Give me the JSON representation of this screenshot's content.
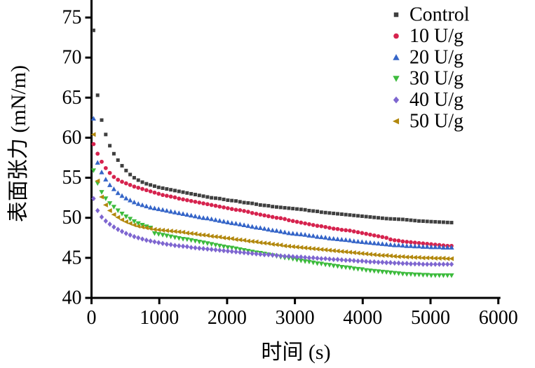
{
  "chart_data": {
    "type": "scatter",
    "title": "",
    "xlabel": "时间 (s)",
    "ylabel": "表面张力 (mN/m)",
    "xlim": [
      0,
      6000
    ],
    "ylim": [
      40,
      75
    ],
    "x_ticks": [
      0,
      1000,
      2000,
      3000,
      4000,
      5000,
      6000
    ],
    "y_ticks": [
      40,
      45,
      50,
      55,
      60,
      65,
      70,
      75
    ],
    "grid": false,
    "legend_position": "top-right",
    "axis_color": "#000000",
    "time_start_s": 30,
    "time_step_s": 60,
    "series": [
      {
        "name": "Control",
        "marker": "square",
        "color": "#3f3f3f",
        "values": [
          73.4,
          65.3,
          62.2,
          60.4,
          59.0,
          58.0,
          57.2,
          56.5,
          55.9,
          55.4,
          55.0,
          54.7,
          54.45,
          54.25,
          54.1,
          53.95,
          53.8,
          53.7,
          53.6,
          53.5,
          53.4,
          53.3,
          53.2,
          53.1,
          53.0,
          52.9,
          52.8,
          52.7,
          52.6,
          52.5,
          52.45,
          52.4,
          52.3,
          52.2,
          52.15,
          52.1,
          52.0,
          51.9,
          51.85,
          51.8,
          51.7,
          51.6,
          51.55,
          51.5,
          51.4,
          51.35,
          51.3,
          51.25,
          51.2,
          51.15,
          51.1,
          51.05,
          51.0,
          50.9,
          50.85,
          50.8,
          50.7,
          50.65,
          50.6,
          50.55,
          50.5,
          50.45,
          50.4,
          50.35,
          50.3,
          50.25,
          50.2,
          50.15,
          50.1,
          50.05,
          50.0,
          49.95,
          49.9,
          49.87,
          49.85,
          49.82,
          49.8,
          49.75,
          49.7,
          49.65,
          49.6,
          49.58,
          49.55,
          49.52,
          49.5,
          49.47,
          49.45,
          49.42,
          49.4
        ]
      },
      {
        "name": "10 U/g",
        "marker": "circle",
        "color": "#d6234e",
        "values": [
          59.2,
          58.0,
          57.0,
          56.2,
          55.6,
          55.1,
          54.75,
          54.5,
          54.3,
          54.1,
          53.9,
          53.75,
          53.6,
          53.45,
          53.3,
          53.15,
          53.0,
          52.85,
          52.75,
          52.65,
          52.55,
          52.4,
          52.3,
          52.2,
          52.1,
          52.0,
          51.9,
          51.8,
          51.7,
          51.6,
          51.5,
          51.4,
          51.3,
          51.2,
          51.1,
          51.0,
          50.95,
          50.85,
          50.75,
          50.6,
          50.5,
          50.4,
          50.3,
          50.2,
          50.1,
          50.0,
          49.95,
          49.85,
          49.7,
          49.6,
          49.5,
          49.4,
          49.3,
          49.2,
          49.1,
          49.0,
          48.95,
          48.85,
          48.75,
          48.65,
          48.6,
          48.5,
          48.45,
          48.4,
          48.3,
          48.2,
          48.1,
          48.0,
          47.9,
          47.8,
          47.7,
          47.6,
          47.5,
          47.3,
          47.2,
          47.15,
          47.05,
          47.0,
          46.95,
          46.9,
          46.85,
          46.8,
          46.75,
          46.7,
          46.65,
          46.6,
          46.55,
          46.5,
          46.5
        ]
      },
      {
        "name": "20 U/g",
        "marker": "triangle-up",
        "color": "#3565c8",
        "values": [
          62.4,
          56.9,
          55.7,
          54.8,
          54.1,
          53.6,
          53.1,
          52.75,
          52.45,
          52.2,
          51.95,
          51.75,
          51.6,
          51.45,
          51.3,
          51.2,
          51.1,
          51.0,
          50.9,
          50.8,
          50.7,
          50.6,
          50.5,
          50.4,
          50.3,
          50.2,
          50.1,
          50.0,
          49.95,
          49.85,
          49.75,
          49.65,
          49.55,
          49.45,
          49.35,
          49.3,
          49.2,
          49.1,
          49.0,
          48.9,
          48.8,
          48.75,
          48.65,
          48.55,
          48.45,
          48.4,
          48.3,
          48.2,
          48.1,
          48.05,
          48.0,
          47.95,
          47.9,
          47.8,
          47.75,
          47.65,
          47.6,
          47.55,
          47.45,
          47.4,
          47.35,
          47.3,
          47.25,
          47.2,
          47.1,
          47.05,
          47.0,
          46.95,
          46.9,
          46.85,
          46.8,
          46.75,
          46.7,
          46.65,
          46.6,
          46.6,
          46.55,
          46.5,
          46.5,
          46.45,
          46.45,
          46.4,
          46.4,
          46.35,
          46.35,
          46.35,
          46.3,
          46.3,
          46.3
        ]
      },
      {
        "name": "30 U/g",
        "marker": "triangle-down",
        "color": "#3dbb3d",
        "values": [
          55.9,
          54.3,
          53.2,
          52.4,
          51.8,
          51.35,
          50.9,
          50.5,
          50.15,
          49.85,
          49.55,
          49.3,
          49.1,
          48.9,
          48.75,
          48.05,
          47.95,
          47.85,
          47.75,
          47.65,
          47.55,
          47.45,
          47.35,
          47.3,
          47.2,
          47.1,
          47.0,
          46.9,
          46.8,
          46.7,
          46.6,
          46.5,
          46.4,
          46.3,
          46.25,
          46.15,
          46.05,
          45.95,
          45.85,
          45.75,
          45.65,
          45.6,
          45.5,
          45.4,
          45.3,
          45.2,
          45.1,
          45.0,
          44.95,
          44.85,
          44.75,
          44.65,
          44.55,
          44.5,
          44.4,
          44.3,
          44.25,
          44.15,
          44.1,
          44.0,
          43.95,
          43.85,
          43.8,
          43.75,
          43.65,
          43.6,
          43.55,
          43.45,
          43.4,
          43.35,
          43.3,
          43.25,
          43.2,
          43.15,
          43.1,
          43.05,
          43.0,
          42.95,
          42.95,
          42.9,
          42.9,
          42.85,
          42.85,
          42.8,
          42.8,
          42.8,
          42.8,
          42.8,
          42.8
        ]
      },
      {
        "name": "40 U/g",
        "marker": "diamond",
        "color": "#7e66d0",
        "values": [
          52.4,
          50.9,
          50.1,
          49.6,
          49.2,
          48.85,
          48.55,
          48.3,
          48.05,
          47.85,
          47.65,
          47.5,
          47.35,
          47.2,
          47.1,
          47.0,
          46.9,
          46.8,
          46.7,
          46.65,
          46.55,
          46.5,
          46.45,
          46.4,
          46.3,
          46.25,
          46.2,
          46.15,
          46.1,
          46.05,
          46.0,
          45.95,
          45.9,
          45.85,
          45.8,
          45.75,
          45.7,
          45.65,
          45.6,
          45.55,
          45.5,
          45.45,
          45.4,
          45.4,
          45.35,
          45.3,
          45.25,
          45.2,
          45.2,
          45.15,
          45.1,
          45.1,
          45.05,
          45.0,
          45.0,
          44.95,
          44.9,
          44.9,
          44.85,
          44.8,
          44.8,
          44.75,
          44.7,
          44.7,
          44.65,
          44.6,
          44.6,
          44.55,
          44.5,
          44.5,
          44.45,
          44.45,
          44.4,
          44.4,
          44.35,
          44.35,
          44.3,
          44.3,
          44.25,
          44.25,
          44.25,
          44.2,
          44.2,
          44.2,
          44.2,
          44.2,
          44.2,
          44.2,
          44.2
        ]
      },
      {
        "name": "50 U/g",
        "marker": "triangle-left",
        "color": "#b2880e",
        "values": [
          60.4,
          54.6,
          52.6,
          51.6,
          50.9,
          50.4,
          50.05,
          49.75,
          49.5,
          49.3,
          49.1,
          48.95,
          48.85,
          48.75,
          48.65,
          48.55,
          48.5,
          48.45,
          48.4,
          48.35,
          48.3,
          48.25,
          48.2,
          48.1,
          48.05,
          48.0,
          47.9,
          47.85,
          47.8,
          47.7,
          47.65,
          47.6,
          47.5,
          47.45,
          47.4,
          47.3,
          47.25,
          47.2,
          47.1,
          47.05,
          47.0,
          46.9,
          46.85,
          46.8,
          46.7,
          46.65,
          46.6,
          46.5,
          46.45,
          46.4,
          46.35,
          46.3,
          46.25,
          46.2,
          46.15,
          46.1,
          46.05,
          46.0,
          45.95,
          45.9,
          45.85,
          45.8,
          45.75,
          45.7,
          45.65,
          45.6,
          45.55,
          45.5,
          45.45,
          45.4,
          45.35,
          45.3,
          45.3,
          45.25,
          45.2,
          45.15,
          45.15,
          45.1,
          45.1,
          45.05,
          45.05,
          45.0,
          45.0,
          45.0,
          44.95,
          44.95,
          44.95,
          44.9,
          44.9
        ]
      }
    ]
  }
}
